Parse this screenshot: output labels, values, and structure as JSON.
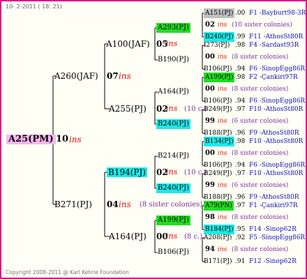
{
  "header": {
    "date": "10-  2-2011 ( 18: 21)"
  },
  "footer": {
    "copyright": "Copyright 2008-2011 @ Karl Kehrle Foundation"
  },
  "root": {
    "id": "A25(PM)",
    "count": "10",
    "ins": "ins"
  },
  "gen1": [
    {
      "id": "A260(JAF)",
      "count": "07",
      "ins": "ins"
    },
    {
      "id": "B271(PJ)",
      "count": "04",
      "ins": "ins",
      "note": "(8 sister colonies)"
    }
  ],
  "gen2": [
    {
      "id": "A100(JAF)",
      "count": "05",
      "ins": "ins"
    },
    {
      "id": "A255(PJ)",
      "count": "02",
      "ins": "ins",
      "note": "(10 c.)"
    },
    {
      "id": "B194(PJ)",
      "count": "02",
      "ins": "ins",
      "note": "(10 c.)"
    },
    {
      "id": "A164(PJ)",
      "count": "00",
      "ins": "ins",
      "note": "(8 c.)"
    }
  ],
  "gen3": [
    {
      "id": "A293(PJ)"
    },
    {
      "id": "B190(PJ)"
    },
    {
      "id": "A164(PJ)"
    },
    {
      "id": "B240(PJ)"
    },
    {
      "id": "B214(PJ)"
    },
    {
      "id": "B240(PJ)"
    },
    {
      "id": "A199(PJ)"
    },
    {
      "id": "B106(PJ)"
    }
  ],
  "gen4_groups": [
    {
      "count": "02",
      "ins": "ins",
      "note": "(10 sister colonies)",
      "top": {
        "id": "A151(PJ)",
        "score": ".00",
        "loc": "F1 -Bayburt98-3R"
      },
      "bottom": {
        "id": "B240(PJ)",
        "score": ".99",
        "loc": "F11 -AthosSt80R"
      }
    },
    {
      "count": "00",
      "ins": "ins",
      "note": "(8 sister colonies)",
      "top": {
        "id": "I273(PJ)",
        "score": ".98",
        "loc": "F4 -Sardast93R"
      },
      "bottom": {
        "id": "B106(PJ)",
        "score": ".94",
        "loc": "F6 -SinopEgg86R"
      }
    },
    {
      "count": "00",
      "ins": "ins",
      "note": "(8 sister colonies)",
      "top": {
        "id": "A199(PJ)",
        "score": ".98",
        "loc": "F2 -Çankiri97R"
      },
      "bottom": {
        "id": "B106(PJ)",
        "score": ".94",
        "loc": "F6 -SinopEgg86R"
      }
    },
    {
      "count": "99",
      "ins": "ins",
      "note": "(6 sister colonies)",
      "top": {
        "id": "B249(PJ)",
        "score": ".97",
        "loc": "F10 -AthosSt80R"
      },
      "bottom": {
        "id": "B188(PJ)",
        "score": ".96",
        "loc": "F9 -AthosSt80R"
      }
    },
    {
      "count": "00",
      "ins": "ins",
      "note": "(8 sister colonies)",
      "top": {
        "id": "B134(PJ)",
        "score": ".98",
        "loc": "F10 -AthosSt80R"
      },
      "bottom": {
        "id": "B106(PJ)",
        "score": ".94",
        "loc": "F6 -SinopEgg86R"
      }
    },
    {
      "count": "99",
      "ins": "ins",
      "note": "(6 sister colonies)",
      "top": {
        "id": "B249(PJ)",
        "score": ".97",
        "loc": "F10 -AthosSt80R"
      },
      "bottom": {
        "id": "B188(PJ)",
        "score": ".96",
        "loc": "F9 -AthosSt80R"
      }
    },
    {
      "count": "98",
      "ins": "ins",
      "note": "(8 sister colonies)",
      "top": {
        "id": "A79(PN)",
        "score": ".97",
        "loc": "F1 -Çankiri97R"
      },
      "bottom": {
        "id": "B184(PJ)",
        "score": ".95",
        "loc": "F14 -Sinop62R"
      }
    },
    {
      "count": "94",
      "ins": "ins",
      "note": "(8 sister colonies)",
      "top": {
        "id": "A208(PJ)",
        "score": ".92",
        "loc": "F5 -SinopEgg86R"
      },
      "bottom": {
        "id": "B171(PJ)",
        "score": ".91",
        "loc": "F12 -Sinop62R"
      }
    }
  ],
  "colors": {
    "frame": "#e0148c",
    "line": "#000000",
    "green": "#22dd22",
    "cyan": "#1de9e9",
    "gray": "#c0c0c0",
    "root": "#f7b6f0",
    "ins": "#e01010",
    "location": "#1010c0",
    "note": "#8030a0"
  }
}
